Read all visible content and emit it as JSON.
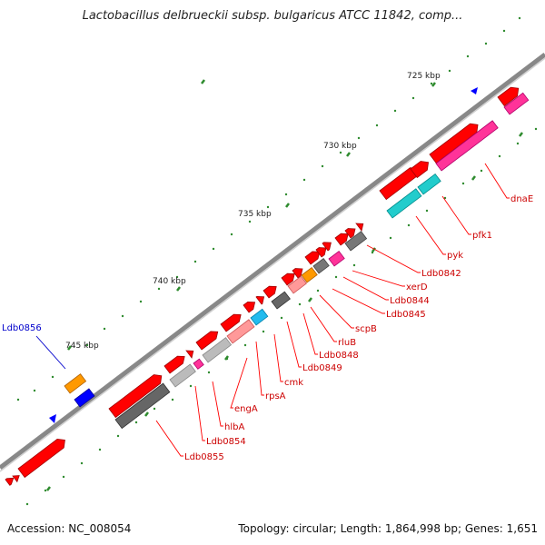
{
  "title": "Lactobacillus delbrueckii subsp. bulgaricus ATCC 11842, comp...",
  "accession_label": "Accession: NC_008054",
  "summary_label": "Topology: circular; Length: 1,864,998 bp; Genes: 1,651",
  "colors": {
    "backbone": "#8c8c8c",
    "tick": "#2e8b2e",
    "forward_gene": "#ff0000",
    "label_line": "#ff0000",
    "label_text": "#cc0000",
    "highlight_label": "#0000cc"
  },
  "axis_ticks": [
    "725 kbp",
    "730 kbp",
    "735 kbp",
    "740 kbp",
    "745 kbp"
  ],
  "gene_labels": [
    "dnaE",
    "pfk1",
    "pyk",
    "Ldb0842",
    "xerD",
    "Ldb0844",
    "Ldb0845",
    "scpB",
    "rluB",
    "Ldb0848",
    "Ldb0849",
    "cmk",
    "rpsA",
    "engA",
    "hlbA",
    "Ldb0854",
    "Ldb0855"
  ],
  "highlight_gene": "Ldb0856"
}
